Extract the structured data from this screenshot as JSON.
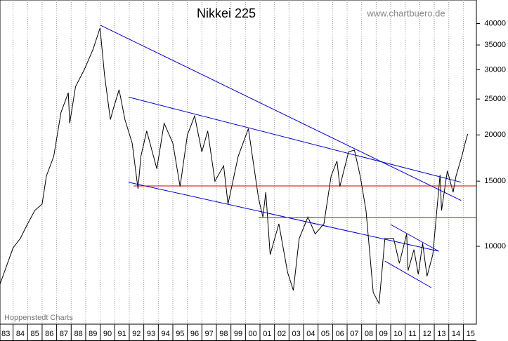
{
  "chart_data": {
    "type": "line",
    "title": "Nikkei 225",
    "subtitle": "www.chartbuero.de",
    "source": "Hoppenstedt Charts",
    "log_scale": true,
    "grid": "x",
    "xlim": [
      1983.1,
      2015.9
    ],
    "ylim": [
      6160,
      46300
    ],
    "yticks": [
      10000,
      15000,
      20000,
      25000,
      30000,
      35000,
      40000
    ],
    "xticks": [
      {
        "value": 1983,
        "label": "83"
      },
      {
        "value": 1984,
        "label": "84"
      },
      {
        "value": 1985,
        "label": "85"
      },
      {
        "value": 1986,
        "label": "86"
      },
      {
        "value": 1987,
        "label": "87"
      },
      {
        "value": 1988,
        "label": "88"
      },
      {
        "value": 1989,
        "label": "89"
      },
      {
        "value": 1990,
        "label": "90"
      },
      {
        "value": 1991,
        "label": "91"
      },
      {
        "value": 1992,
        "label": "92"
      },
      {
        "value": 1993,
        "label": "93"
      },
      {
        "value": 1994,
        "label": "94"
      },
      {
        "value": 1995,
        "label": "95"
      },
      {
        "value": 1996,
        "label": "96"
      },
      {
        "value": 1997,
        "label": "97"
      },
      {
        "value": 1998,
        "label": "98"
      },
      {
        "value": 1999,
        "label": "99"
      },
      {
        "value": 2000,
        "label": "00"
      },
      {
        "value": 2001,
        "label": "01"
      },
      {
        "value": 2002,
        "label": "02"
      },
      {
        "value": 2003,
        "label": "03"
      },
      {
        "value": 2004,
        "label": "04"
      },
      {
        "value": 2005,
        "label": "05"
      },
      {
        "value": 2006,
        "label": "06"
      },
      {
        "value": 2007,
        "label": "07"
      },
      {
        "value": 2008,
        "label": "08"
      },
      {
        "value": 2009,
        "label": "09"
      },
      {
        "value": 2010,
        "label": "10"
      },
      {
        "value": 2011,
        "label": "11"
      },
      {
        "value": 2012,
        "label": "12"
      },
      {
        "value": 2013,
        "label": "13"
      },
      {
        "value": 2014,
        "label": "14"
      },
      {
        "value": 2015,
        "label": "15"
      }
    ],
    "x": [
      1983.1,
      1984.0,
      1984.5,
      1985.0,
      1985.5,
      1986.0,
      1986.3,
      1986.8,
      1987.3,
      1987.8,
      1987.9,
      1988.3,
      1988.9,
      1989.5,
      1989.99,
      1990.3,
      1990.7,
      1990.9,
      1991.3,
      1991.7,
      1992.2,
      1992.6,
      1992.8,
      1993.2,
      1993.9,
      1994.4,
      1995.0,
      1995.5,
      1996.0,
      1996.5,
      1997.0,
      1997.4,
      1997.9,
      1998.5,
      1998.8,
      1999.5,
      2000.2,
      2000.9,
      2001.2,
      2001.4,
      2001.7,
      2002.3,
      2002.9,
      2003.3,
      2003.7,
      2004.3,
      2004.8,
      2005.4,
      2005.9,
      2006.3,
      2006.5,
      2007.1,
      2007.5,
      2007.9,
      2008.3,
      2008.8,
      2009.2,
      2009.6,
      2010.2,
      2010.6,
      2011.1,
      2011.2,
      2011.6,
      2011.9,
      2012.2,
      2012.5,
      2012.9,
      2013.4,
      2013.5,
      2013.9,
      2014.3,
      2014.5,
      2014.9,
      2015.2,
      2015.3
    ],
    "series": [
      {
        "color": "#000000",
        "values": [
          7900,
          9900,
          10500,
          11500,
          12500,
          13000,
          15500,
          17500,
          23000,
          26000,
          21500,
          27000,
          30000,
          34000,
          38900,
          29000,
          22000,
          23500,
          26500,
          22000,
          19000,
          14300,
          17500,
          20500,
          16200,
          21500,
          19000,
          14500,
          20000,
          22500,
          18000,
          20500,
          15000,
          16500,
          13000,
          17500,
          20800,
          13500,
          12000,
          14000,
          9500,
          11500,
          8500,
          7600,
          10500,
          12000,
          10800,
          11500,
          15500,
          17000,
          14500,
          18000,
          18200,
          15500,
          12500,
          7500,
          7000,
          10500,
          10500,
          9000,
          10800,
          8600,
          9800,
          8400,
          10200,
          8300,
          9500,
          15600,
          12500,
          16000,
          14000,
          15500,
          17500,
          19500,
          20100
        ]
      }
    ],
    "trend_lines": [
      {
        "color": "#0000cc",
        "x": [
          1990.0,
          2014.85
        ],
        "values": [
          39600,
          13300
        ]
      },
      {
        "color": "#0000cc",
        "x": [
          1991.95,
          2014.85
        ],
        "values": [
          25300,
          14900
        ]
      },
      {
        "color": "#0000cc",
        "x": [
          1991.95,
          2013.3
        ],
        "values": [
          14900,
          9700
        ]
      },
      {
        "color": "#0000cc",
        "x": [
          2010.0,
          2013.3
        ],
        "values": [
          11450,
          9700
        ]
      },
      {
        "color": "#0000cc",
        "x": [
          2009.6,
          2012.8
        ],
        "values": [
          9120,
          7730
        ]
      },
      {
        "color": "#cc0000",
        "x": [
          1992.3,
          2015.9
        ],
        "values": [
          14560,
          14560
        ]
      },
      {
        "color": "#cc0000",
        "x": [
          2000.9,
          2015.9
        ],
        "values": [
          11960,
          11960
        ]
      }
    ]
  }
}
